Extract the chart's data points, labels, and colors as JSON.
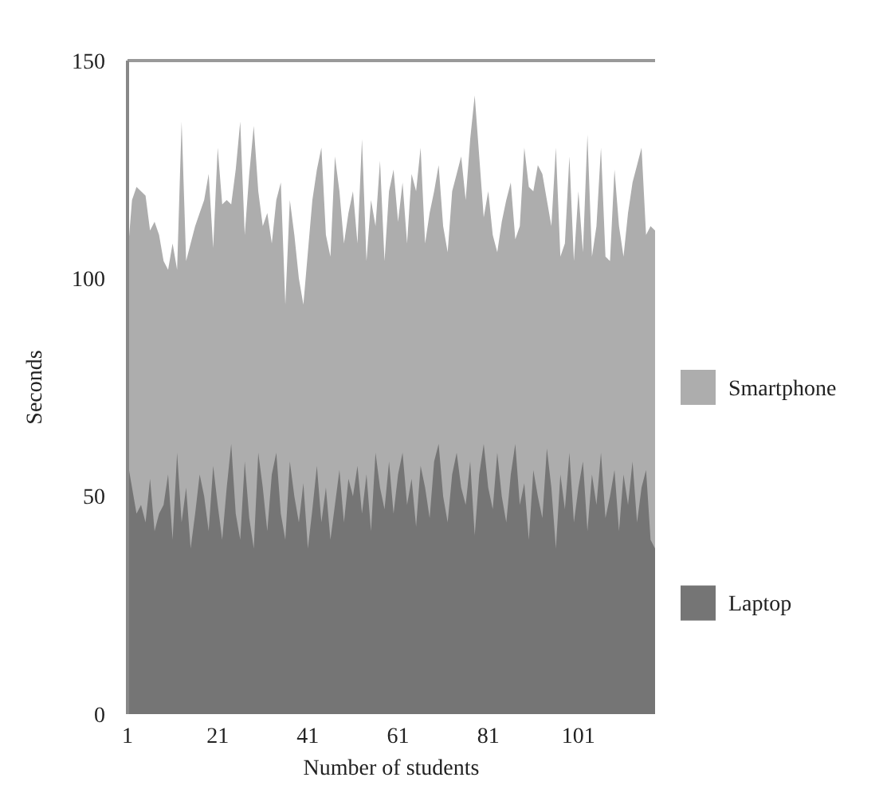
{
  "chart_data": {
    "type": "area",
    "xlabel": "Number of students",
    "ylabel": "Seconds",
    "x": [
      1,
      2,
      3,
      4,
      5,
      6,
      7,
      8,
      9,
      10,
      11,
      12,
      13,
      14,
      15,
      16,
      17,
      18,
      19,
      20,
      21,
      22,
      23,
      24,
      25,
      26,
      27,
      28,
      29,
      30,
      31,
      32,
      33,
      34,
      35,
      36,
      37,
      38,
      39,
      40,
      41,
      42,
      43,
      44,
      45,
      46,
      47,
      48,
      49,
      50,
      51,
      52,
      53,
      54,
      55,
      56,
      57,
      58,
      59,
      60,
      61,
      62,
      63,
      64,
      65,
      66,
      67,
      68,
      69,
      70,
      71,
      72,
      73,
      74,
      75,
      76,
      77,
      78,
      79,
      80,
      81,
      82,
      83,
      84,
      85,
      86,
      87,
      88,
      89,
      90,
      91,
      92,
      93,
      94,
      95,
      96,
      97,
      98,
      99,
      100,
      101,
      102,
      103,
      104,
      105,
      106,
      107,
      108,
      109,
      110,
      111,
      112,
      113,
      114,
      115,
      116,
      117,
      118
    ],
    "series": [
      {
        "name": "Smartphone",
        "color": "#adadad",
        "values": [
          105,
          118,
          121,
          120,
          119,
          111,
          113,
          110,
          104,
          102,
          108,
          102,
          136,
          104,
          108,
          112,
          115,
          118,
          124,
          107,
          130,
          117,
          118,
          117,
          125,
          136,
          110,
          124,
          135,
          120,
          112,
          115,
          108,
          118,
          122,
          94,
          118,
          110,
          100,
          94,
          106,
          118,
          125,
          130,
          110,
          105,
          128,
          120,
          108,
          115,
          120,
          108,
          132,
          104,
          118,
          112,
          127,
          104,
          120,
          125,
          113,
          122,
          108,
          124,
          120,
          130,
          108,
          115,
          120,
          126,
          112,
          106,
          120,
          124,
          128,
          118,
          132,
          142,
          128,
          114,
          120,
          110,
          106,
          113,
          118,
          122,
          109,
          112,
          130,
          121,
          120,
          126,
          124,
          118,
          112,
          130,
          105,
          108,
          128,
          104,
          120,
          106,
          133,
          105,
          112,
          130,
          105,
          104,
          125,
          112,
          105,
          115,
          122,
          126,
          130,
          110,
          112,
          111
        ]
      },
      {
        "name": "Laptop",
        "color": "#757575",
        "values": [
          58,
          52,
          46,
          48,
          44,
          54,
          42,
          46,
          48,
          55,
          40,
          60,
          44,
          52,
          38,
          46,
          55,
          50,
          42,
          57,
          48,
          40,
          52,
          62,
          46,
          40,
          58,
          45,
          38,
          60,
          52,
          42,
          55,
          60,
          46,
          40,
          58,
          50,
          44,
          53,
          38,
          47,
          57,
          44,
          52,
          40,
          48,
          56,
          44,
          54,
          50,
          57,
          46,
          55,
          42,
          60,
          52,
          47,
          58,
          46,
          55,
          60,
          48,
          54,
          43,
          57,
          52,
          45,
          58,
          62,
          50,
          44,
          55,
          60,
          52,
          48,
          58,
          41,
          55,
          62,
          52,
          47,
          60,
          50,
          44,
          55,
          62,
          48,
          53,
          40,
          56,
          50,
          45,
          61,
          52,
          38,
          55,
          47,
          60,
          44,
          52,
          58,
          42,
          55,
          48,
          60,
          45,
          50,
          56,
          42,
          55,
          48,
          58,
          44,
          52,
          56,
          40,
          38
        ]
      }
    ],
    "xlim": [
      1,
      118
    ],
    "xticks": [
      1,
      21,
      41,
      61,
      81,
      101
    ],
    "ylim": [
      0,
      150
    ],
    "yticks": [
      0,
      50,
      100,
      150
    ],
    "grid": false,
    "legend": "right"
  }
}
